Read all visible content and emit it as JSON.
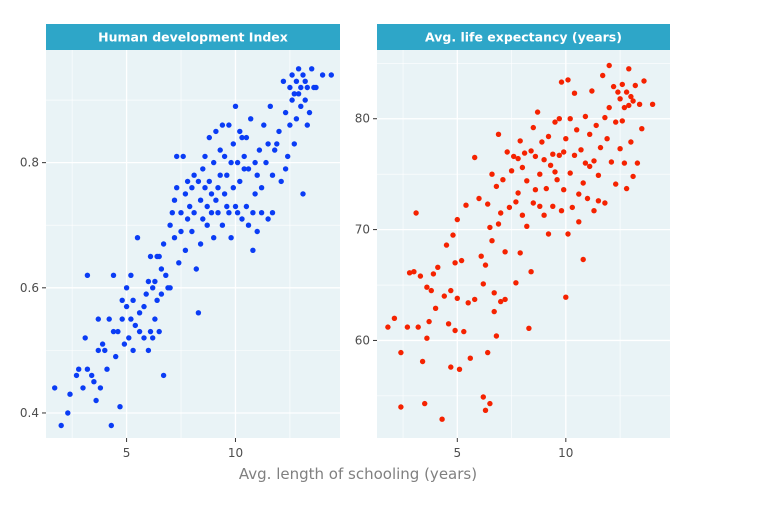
{
  "colors": {
    "background": "#ffffff",
    "panel": "#e9f3f6",
    "grid": "#ffffff",
    "strip": "#2ea6c8",
    "strip_text": "#ffffff",
    "tick_text": "#4d4d4d",
    "axis_title": "#808080",
    "hdi_points": "#0a3cf5",
    "life_points": "#f52200"
  },
  "shared_xlabel": "Avg. length of schooling (years)",
  "chart_data": [
    {
      "type": "scatter",
      "title": "Human development Index",
      "xlabel": "Avg. length of schooling (years)",
      "ylabel": "",
      "xlim": [
        1.3,
        14.8
      ],
      "ylim": [
        0.36,
        0.98
      ],
      "xticks": [
        5,
        10
      ],
      "yticks": [
        0.4,
        0.6,
        0.8
      ],
      "ytick_labels": [
        "0.4",
        "0.6",
        "0.8"
      ],
      "grid": true,
      "points": [
        [
          1.7,
          0.44
        ],
        [
          2.0,
          0.38
        ],
        [
          2.3,
          0.4
        ],
        [
          2.4,
          0.43
        ],
        [
          2.7,
          0.46
        ],
        [
          2.8,
          0.47
        ],
        [
          3.0,
          0.44
        ],
        [
          3.1,
          0.52
        ],
        [
          3.2,
          0.62
        ],
        [
          3.2,
          0.47
        ],
        [
          3.4,
          0.46
        ],
        [
          3.5,
          0.45
        ],
        [
          3.6,
          0.42
        ],
        [
          3.7,
          0.5
        ],
        [
          3.7,
          0.55
        ],
        [
          3.8,
          0.44
        ],
        [
          3.9,
          0.51
        ],
        [
          4.0,
          0.5
        ],
        [
          4.1,
          0.47
        ],
        [
          4.2,
          0.55
        ],
        [
          4.3,
          0.38
        ],
        [
          4.4,
          0.53
        ],
        [
          4.4,
          0.62
        ],
        [
          4.5,
          0.49
        ],
        [
          4.6,
          0.53
        ],
        [
          4.7,
          0.41
        ],
        [
          4.8,
          0.55
        ],
        [
          4.8,
          0.58
        ],
        [
          4.9,
          0.51
        ],
        [
          5.0,
          0.57
        ],
        [
          5.0,
          0.6
        ],
        [
          5.1,
          0.52
        ],
        [
          5.2,
          0.55
        ],
        [
          5.2,
          0.62
        ],
        [
          5.3,
          0.5
        ],
        [
          5.3,
          0.58
        ],
        [
          5.4,
          0.54
        ],
        [
          5.5,
          0.68
        ],
        [
          5.6,
          0.53
        ],
        [
          5.6,
          0.56
        ],
        [
          5.8,
          0.57
        ],
        [
          5.8,
          0.52
        ],
        [
          5.9,
          0.59
        ],
        [
          6.0,
          0.61
        ],
        [
          6.0,
          0.5
        ],
        [
          6.1,
          0.53
        ],
        [
          6.1,
          0.65
        ],
        [
          6.2,
          0.52
        ],
        [
          6.2,
          0.6
        ],
        [
          6.3,
          0.55
        ],
        [
          6.3,
          0.61
        ],
        [
          6.4,
          0.65
        ],
        [
          6.4,
          0.58
        ],
        [
          6.5,
          0.65
        ],
        [
          6.5,
          0.53
        ],
        [
          6.6,
          0.63
        ],
        [
          6.6,
          0.59
        ],
        [
          6.7,
          0.46
        ],
        [
          6.7,
          0.67
        ],
        [
          6.8,
          0.62
        ],
        [
          6.9,
          0.6
        ],
        [
          7.0,
          0.6
        ],
        [
          7.0,
          0.7
        ],
        [
          7.1,
          0.72
        ],
        [
          7.2,
          0.74
        ],
        [
          7.2,
          0.68
        ],
        [
          7.3,
          0.76
        ],
        [
          7.3,
          0.81
        ],
        [
          7.4,
          0.64
        ],
        [
          7.5,
          0.69
        ],
        [
          7.5,
          0.72
        ],
        [
          7.6,
          0.81
        ],
        [
          7.7,
          0.75
        ],
        [
          7.7,
          0.66
        ],
        [
          7.8,
          0.77
        ],
        [
          7.8,
          0.71
        ],
        [
          7.9,
          0.73
        ],
        [
          8.0,
          0.69
        ],
        [
          8.0,
          0.76
        ],
        [
          8.1,
          0.78
        ],
        [
          8.1,
          0.72
        ],
        [
          8.2,
          0.63
        ],
        [
          8.3,
          0.56
        ],
        [
          8.3,
          0.77
        ],
        [
          8.4,
          0.74
        ],
        [
          8.4,
          0.67
        ],
        [
          8.5,
          0.79
        ],
        [
          8.5,
          0.71
        ],
        [
          8.6,
          0.76
        ],
        [
          8.6,
          0.81
        ],
        [
          8.7,
          0.73
        ],
        [
          8.7,
          0.7
        ],
        [
          8.8,
          0.77
        ],
        [
          8.8,
          0.84
        ],
        [
          8.9,
          0.75
        ],
        [
          8.9,
          0.72
        ],
        [
          9.0,
          0.8
        ],
        [
          9.0,
          0.68
        ],
        [
          9.1,
          0.85
        ],
        [
          9.1,
          0.74
        ],
        [
          9.2,
          0.76
        ],
        [
          9.2,
          0.72
        ],
        [
          9.3,
          0.82
        ],
        [
          9.3,
          0.78
        ],
        [
          9.4,
          0.7
        ],
        [
          9.4,
          0.86
        ],
        [
          9.5,
          0.75
        ],
        [
          9.5,
          0.81
        ],
        [
          9.6,
          0.73
        ],
        [
          9.6,
          0.78
        ],
        [
          9.7,
          0.86
        ],
        [
          9.7,
          0.72
        ],
        [
          9.8,
          0.8
        ],
        [
          9.8,
          0.68
        ],
        [
          9.9,
          0.83
        ],
        [
          9.9,
          0.76
        ],
        [
          10.0,
          0.73
        ],
        [
          10.0,
          0.89
        ],
        [
          10.1,
          0.8
        ],
        [
          10.1,
          0.72
        ],
        [
          10.2,
          0.85
        ],
        [
          10.2,
          0.77
        ],
        [
          10.3,
          0.84
        ],
        [
          10.3,
          0.71
        ],
        [
          10.4,
          0.79
        ],
        [
          10.4,
          0.81
        ],
        [
          10.5,
          0.73
        ],
        [
          10.5,
          0.84
        ],
        [
          10.6,
          0.7
        ],
        [
          10.6,
          0.79
        ],
        [
          10.7,
          0.87
        ],
        [
          10.8,
          0.72
        ],
        [
          10.8,
          0.66
        ],
        [
          10.9,
          0.75
        ],
        [
          10.9,
          0.8
        ],
        [
          11.0,
          0.69
        ],
        [
          11.0,
          0.78
        ],
        [
          11.1,
          0.82
        ],
        [
          11.2,
          0.72
        ],
        [
          11.2,
          0.76
        ],
        [
          11.3,
          0.86
        ],
        [
          11.4,
          0.8
        ],
        [
          11.5,
          0.83
        ],
        [
          11.5,
          0.71
        ],
        [
          11.6,
          0.89
        ],
        [
          11.7,
          0.78
        ],
        [
          11.7,
          0.72
        ],
        [
          11.8,
          0.82
        ],
        [
          11.9,
          0.83
        ],
        [
          12.0,
          0.85
        ],
        [
          12.1,
          0.77
        ],
        [
          12.2,
          0.93
        ],
        [
          12.3,
          0.79
        ],
        [
          12.3,
          0.88
        ],
        [
          12.4,
          0.81
        ],
        [
          12.5,
          0.92
        ],
        [
          12.5,
          0.86
        ],
        [
          12.6,
          0.9
        ],
        [
          12.6,
          0.94
        ],
        [
          12.7,
          0.83
        ],
        [
          12.7,
          0.91
        ],
        [
          12.8,
          0.93
        ],
        [
          12.8,
          0.87
        ],
        [
          12.9,
          0.95
        ],
        [
          12.9,
          0.91
        ],
        [
          13.0,
          0.89
        ],
        [
          13.0,
          0.92
        ],
        [
          13.1,
          0.94
        ],
        [
          13.1,
          0.75
        ],
        [
          13.2,
          0.9
        ],
        [
          13.2,
          0.93
        ],
        [
          13.3,
          0.86
        ],
        [
          13.3,
          0.92
        ],
        [
          13.4,
          0.88
        ],
        [
          13.5,
          0.95
        ],
        [
          13.6,
          0.92
        ],
        [
          13.7,
          0.92
        ],
        [
          14.0,
          0.94
        ],
        [
          14.4,
          0.94
        ]
      ]
    },
    {
      "type": "scatter",
      "title": "Avg. life expectancy (years)",
      "xlabel": "Avg. length of schooling (years)",
      "ylabel": "",
      "xlim": [
        1.3,
        14.8
      ],
      "ylim": [
        51.2,
        86.2
      ],
      "xticks": [
        5,
        10
      ],
      "yticks": [
        60,
        70,
        80
      ],
      "ytick_labels": [
        "60",
        "70",
        "80"
      ],
      "grid": true,
      "points": [
        [
          1.8,
          61.2
        ],
        [
          2.1,
          62.0
        ],
        [
          2.4,
          54.0
        ],
        [
          2.4,
          58.9
        ],
        [
          2.7,
          61.2
        ],
        [
          2.8,
          66.1
        ],
        [
          3.0,
          66.2
        ],
        [
          3.1,
          71.5
        ],
        [
          3.2,
          61.2
        ],
        [
          3.3,
          65.8
        ],
        [
          3.4,
          58.1
        ],
        [
          3.5,
          54.3
        ],
        [
          3.6,
          60.2
        ],
        [
          3.6,
          64.8
        ],
        [
          3.7,
          61.7
        ],
        [
          3.8,
          64.5
        ],
        [
          3.9,
          66.0
        ],
        [
          4.0,
          62.9
        ],
        [
          4.1,
          66.6
        ],
        [
          4.3,
          52.9
        ],
        [
          4.4,
          64.0
        ],
        [
          4.5,
          68.6
        ],
        [
          4.6,
          61.5
        ],
        [
          4.7,
          64.5
        ],
        [
          4.7,
          57.6
        ],
        [
          4.8,
          69.5
        ],
        [
          4.9,
          60.9
        ],
        [
          4.9,
          67.0
        ],
        [
          5.0,
          63.8
        ],
        [
          5.0,
          70.9
        ],
        [
          5.1,
          57.4
        ],
        [
          5.2,
          67.2
        ],
        [
          5.3,
          60.8
        ],
        [
          5.4,
          72.2
        ],
        [
          5.5,
          63.4
        ],
        [
          5.6,
          58.4
        ],
        [
          5.8,
          76.5
        ],
        [
          5.8,
          63.7
        ],
        [
          6.0,
          72.8
        ],
        [
          6.1,
          67.6
        ],
        [
          6.2,
          65.1
        ],
        [
          6.2,
          54.9
        ],
        [
          6.3,
          66.8
        ],
        [
          6.3,
          53.7
        ],
        [
          6.4,
          58.9
        ],
        [
          6.4,
          72.3
        ],
        [
          6.5,
          70.2
        ],
        [
          6.5,
          54.3
        ],
        [
          6.6,
          69.0
        ],
        [
          6.6,
          75.0
        ],
        [
          6.7,
          62.6
        ],
        [
          6.7,
          64.3
        ],
        [
          6.8,
          73.9
        ],
        [
          6.8,
          60.4
        ],
        [
          6.9,
          78.6
        ],
        [
          6.9,
          70.5
        ],
        [
          7.0,
          63.5
        ],
        [
          7.0,
          71.5
        ],
        [
          7.1,
          74.5
        ],
        [
          7.2,
          68.0
        ],
        [
          7.2,
          63.7
        ],
        [
          7.3,
          77.0
        ],
        [
          7.4,
          72.0
        ],
        [
          7.5,
          75.3
        ],
        [
          7.6,
          76.6
        ],
        [
          7.7,
          65.2
        ],
        [
          7.7,
          72.5
        ],
        [
          7.8,
          73.3
        ],
        [
          7.8,
          76.4
        ],
        [
          7.9,
          67.9
        ],
        [
          7.9,
          78.0
        ],
        [
          8.0,
          75.6
        ],
        [
          8.0,
          71.3
        ],
        [
          8.1,
          76.9
        ],
        [
          8.2,
          70.3
        ],
        [
          8.2,
          74.4
        ],
        [
          8.3,
          61.1
        ],
        [
          8.4,
          77.1
        ],
        [
          8.4,
          66.2
        ],
        [
          8.5,
          72.4
        ],
        [
          8.5,
          79.2
        ],
        [
          8.6,
          73.6
        ],
        [
          8.6,
          76.6
        ],
        [
          8.7,
          80.6
        ],
        [
          8.8,
          72.1
        ],
        [
          8.8,
          75.0
        ],
        [
          8.9,
          77.9
        ],
        [
          9.0,
          71.3
        ],
        [
          9.0,
          76.3
        ],
        [
          9.1,
          73.7
        ],
        [
          9.2,
          78.4
        ],
        [
          9.2,
          69.6
        ],
        [
          9.3,
          75.8
        ],
        [
          9.4,
          76.8
        ],
        [
          9.4,
          72.1
        ],
        [
          9.5,
          79.7
        ],
        [
          9.5,
          75.2
        ],
        [
          9.6,
          74.5
        ],
        [
          9.7,
          80.0
        ],
        [
          9.7,
          76.7
        ],
        [
          9.8,
          71.7
        ],
        [
          9.8,
          83.3
        ],
        [
          9.9,
          77.0
        ],
        [
          9.9,
          73.6
        ],
        [
          10.0,
          78.2
        ],
        [
          10.0,
          63.9
        ],
        [
          10.1,
          69.6
        ],
        [
          10.1,
          83.5
        ],
        [
          10.2,
          80.0
        ],
        [
          10.2,
          75.1
        ],
        [
          10.3,
          72.0
        ],
        [
          10.4,
          82.3
        ],
        [
          10.4,
          76.7
        ],
        [
          10.5,
          79.0
        ],
        [
          10.6,
          70.7
        ],
        [
          10.6,
          73.2
        ],
        [
          10.7,
          77.2
        ],
        [
          10.8,
          74.2
        ],
        [
          10.8,
          67.3
        ],
        [
          10.9,
          76.0
        ],
        [
          10.9,
          80.2
        ],
        [
          11.0,
          72.8
        ],
        [
          11.1,
          78.6
        ],
        [
          11.1,
          75.7
        ],
        [
          11.2,
          82.5
        ],
        [
          11.3,
          71.7
        ],
        [
          11.3,
          76.2
        ],
        [
          11.4,
          79.4
        ],
        [
          11.5,
          72.6
        ],
        [
          11.5,
          74.9
        ],
        [
          11.6,
          77.4
        ],
        [
          11.7,
          83.9
        ],
        [
          11.8,
          80.1
        ],
        [
          11.8,
          72.4
        ],
        [
          11.9,
          78.2
        ],
        [
          12.0,
          84.8
        ],
        [
          12.0,
          81.0
        ],
        [
          12.1,
          76.1
        ],
        [
          12.2,
          82.9
        ],
        [
          12.3,
          74.1
        ],
        [
          12.3,
          79.7
        ],
        [
          12.4,
          82.4
        ],
        [
          12.5,
          81.8
        ],
        [
          12.5,
          77.3
        ],
        [
          12.6,
          83.1
        ],
        [
          12.6,
          79.8
        ],
        [
          12.7,
          81.0
        ],
        [
          12.7,
          76.0
        ],
        [
          12.8,
          82.4
        ],
        [
          12.8,
          73.7
        ],
        [
          12.9,
          81.2
        ],
        [
          12.9,
          84.5
        ],
        [
          13.0,
          77.9
        ],
        [
          13.0,
          82.0
        ],
        [
          13.1,
          74.8
        ],
        [
          13.1,
          81.6
        ],
        [
          13.2,
          83.0
        ],
        [
          13.3,
          76.0
        ],
        [
          13.4,
          81.3
        ],
        [
          13.5,
          79.1
        ],
        [
          13.6,
          83.4
        ],
        [
          14.0,
          81.3
        ]
      ]
    }
  ]
}
